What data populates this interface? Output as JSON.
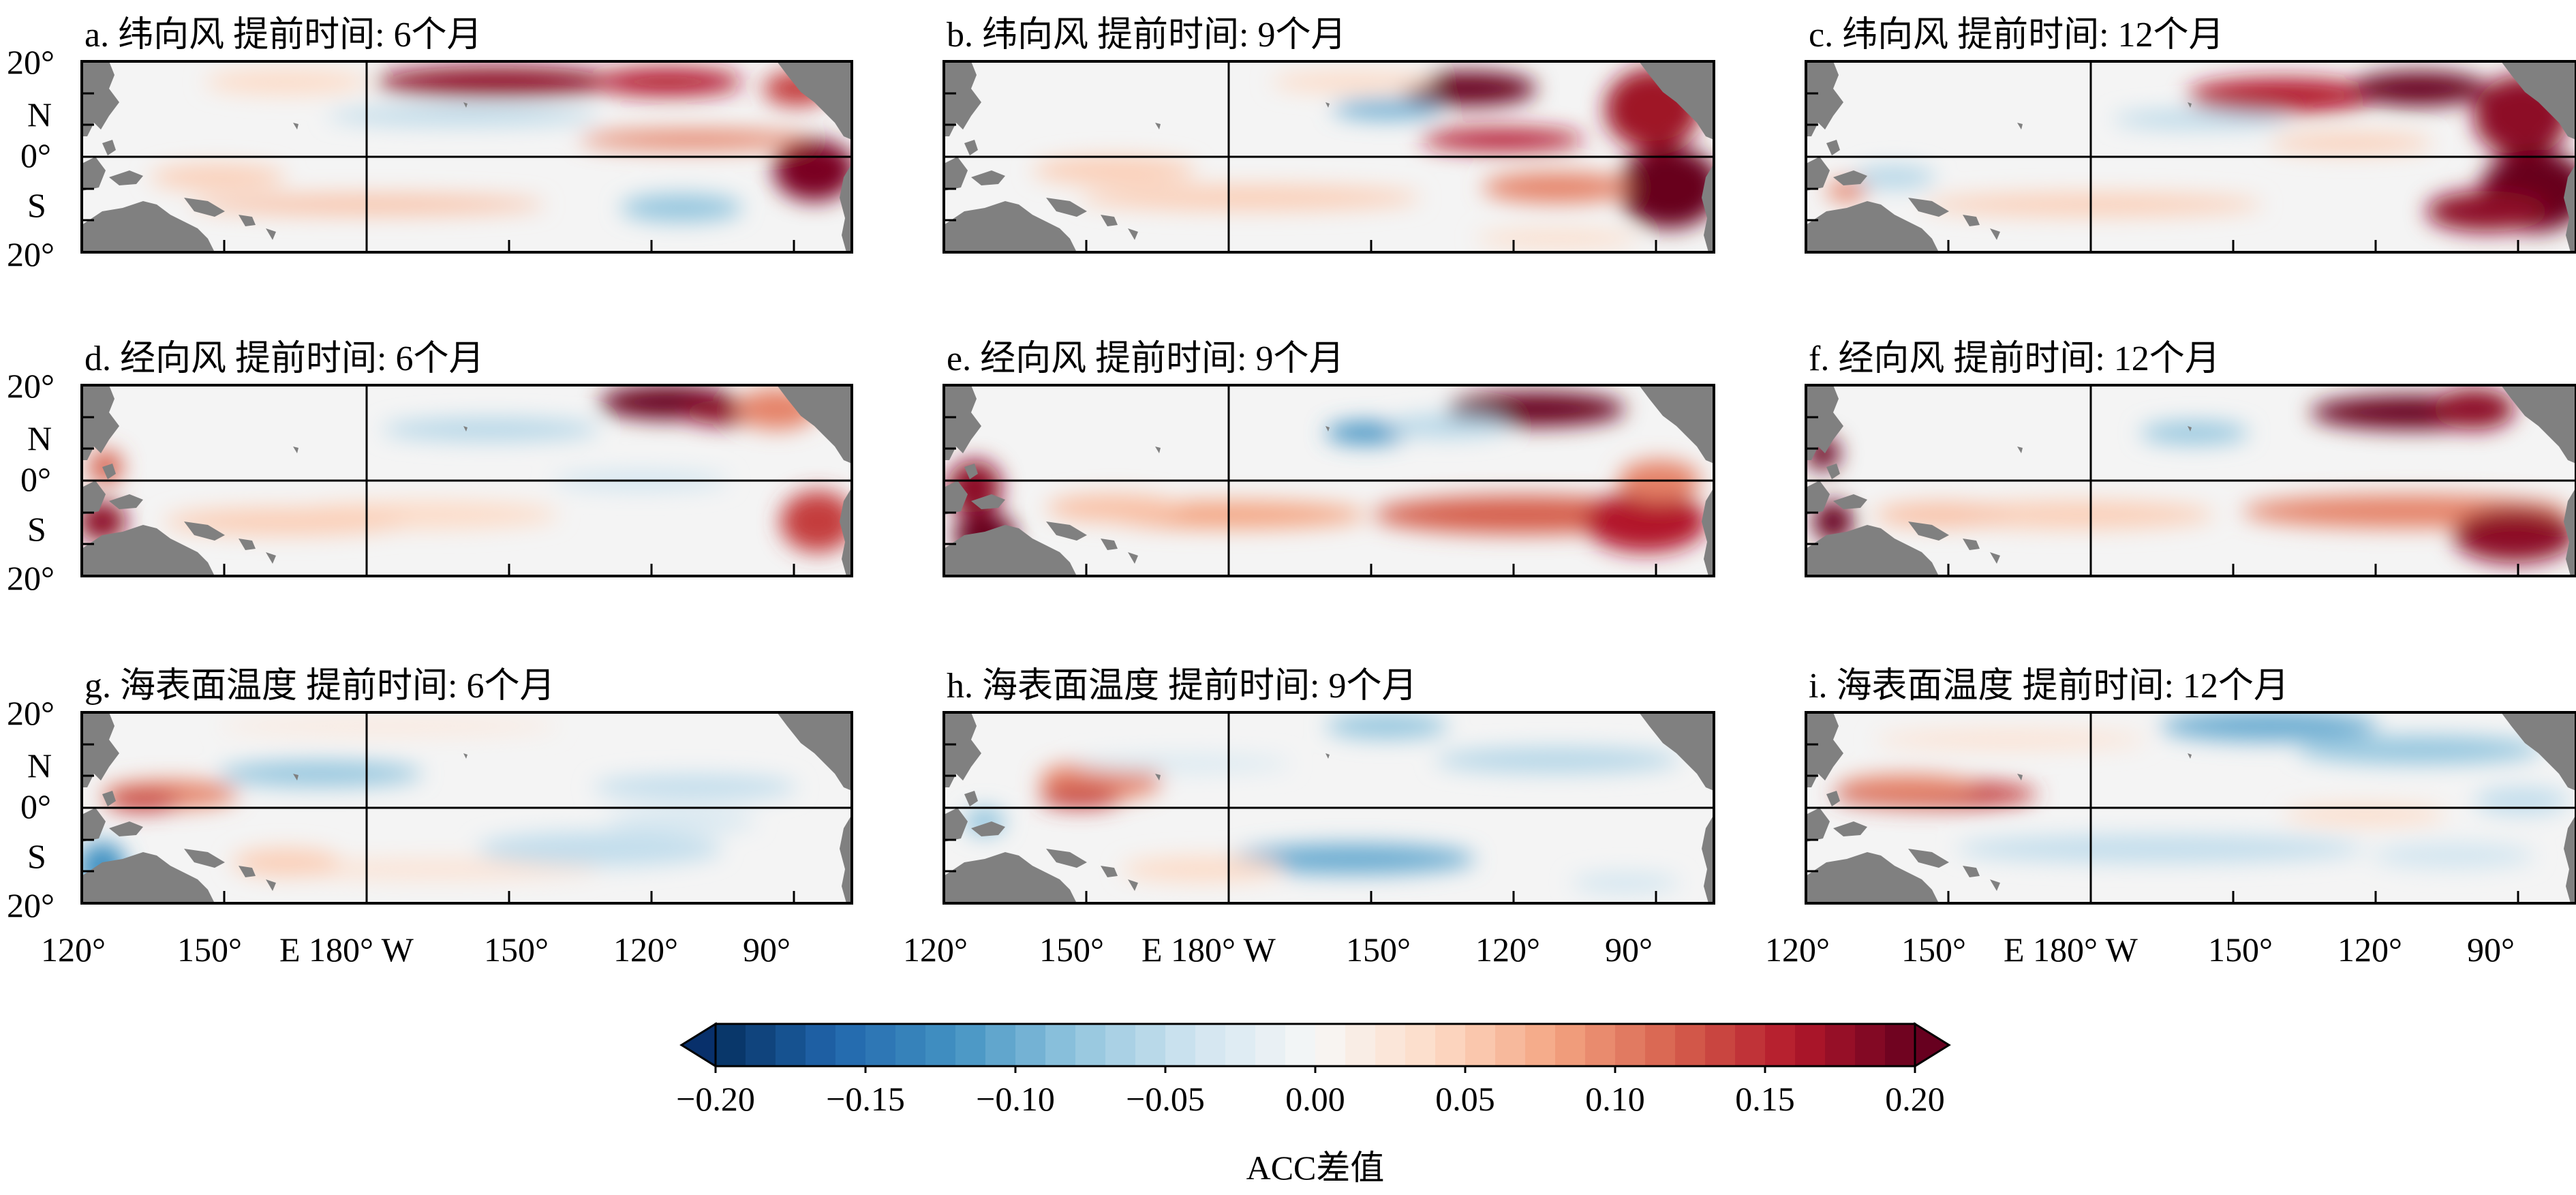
{
  "panels": [
    {
      "id": "a",
      "title": "a. 纬向风 提前时间: 6个月"
    },
    {
      "id": "b",
      "title": "b. 纬向风 提前时间: 9个月"
    },
    {
      "id": "c",
      "title": "c. 纬向风 提前时间: 12个月"
    },
    {
      "id": "d",
      "title": "d. 经向风 提前时间: 6个月"
    },
    {
      "id": "e",
      "title": "e. 经向风 提前时间: 9个月"
    },
    {
      "id": "f",
      "title": "f. 经向风 提前时间: 12个月"
    },
    {
      "id": "g",
      "title": "g. 海表面温度 提前时间: 6个月"
    },
    {
      "id": "h",
      "title": "h. 海表面温度 提前时间: 9个月"
    },
    {
      "id": "i",
      "title": "i. 海表面温度 提前时间: 12个月"
    }
  ],
  "lat_labels": [
    "20°",
    "N",
    "0°",
    "S",
    "20°"
  ],
  "lon_labels": [
    "120°",
    "150°",
    "E 180° W",
    "150°",
    "120°",
    "90°"
  ],
  "colorbar": {
    "label": "ACC差值",
    "ticks": [
      "−0.20",
      "−0.15",
      "−0.10",
      "−0.05",
      "0.00",
      "0.05",
      "0.10",
      "0.15",
      "0.20"
    ],
    "min": -0.2,
    "max": 0.2,
    "colors": [
      "#08306b",
      "#b2182b",
      "#ffffff"
    ]
  },
  "colors": {
    "land": "#808080",
    "frame": "#000000"
  }
}
